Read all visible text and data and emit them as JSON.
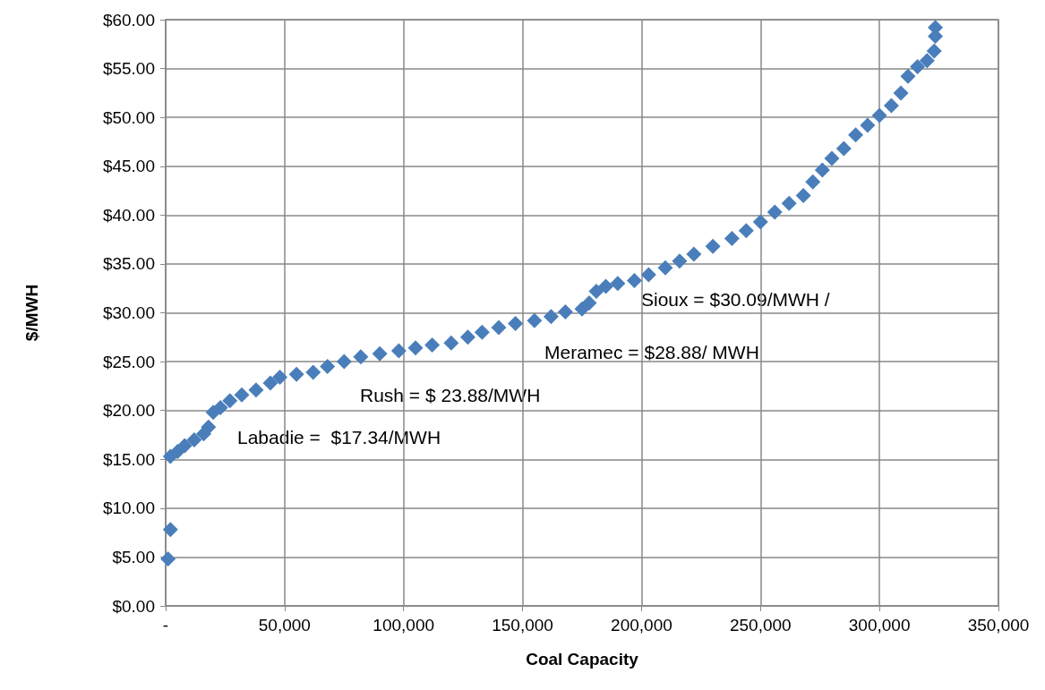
{
  "chart_data": {
    "type": "scatter",
    "xlabel": "Coal Capacity",
    "ylabel": "$/MWH",
    "annotations": [
      "Labadie =  $17.34/MWH",
      "Rush = $ 23.88/MWH",
      "Meramec = $28.88/ MWH",
      "Sioux = $30.09/MWH /"
    ],
    "xlim": [
      0,
      350000
    ],
    "xticks": [
      {
        "value": 0,
        "label": "-"
      },
      {
        "value": 50000,
        "label": "50,000"
      },
      {
        "value": 100000,
        "label": "100,000"
      },
      {
        "value": 150000,
        "label": "150,000"
      },
      {
        "value": 200000,
        "label": "200,000"
      },
      {
        "value": 250000,
        "label": "250,000"
      },
      {
        "value": 300000,
        "label": "300,000"
      },
      {
        "value": 350000,
        "label": "350,000"
      }
    ],
    "ylim": [
      0,
      60
    ],
    "yticks": [
      {
        "value": 0,
        "label": "$0.00"
      },
      {
        "value": 5,
        "label": "$5.00"
      },
      {
        "value": 10,
        "label": "$10.00"
      },
      {
        "value": 15,
        "label": "$15.00"
      },
      {
        "value": 20,
        "label": "$20.00"
      },
      {
        "value": 25,
        "label": "$25.00"
      },
      {
        "value": 30,
        "label": "$30.00"
      },
      {
        "value": 35,
        "label": "$35.00"
      },
      {
        "value": 40,
        "label": "$40.00"
      },
      {
        "value": 45,
        "label": "$45.00"
      },
      {
        "value": 50,
        "label": "$50.00"
      },
      {
        "value": 55,
        "label": "$55.00"
      },
      {
        "value": 60,
        "label": "$60.00"
      }
    ],
    "grid": true,
    "marker": "diamond",
    "series": [
      {
        "color": "#4a7ebb",
        "x": [
          1000,
          2000,
          2000,
          5000,
          8000,
          12000,
          16000,
          18000,
          20000,
          23000,
          27000,
          32000,
          38000,
          44000,
          48000,
          55000,
          62000,
          68000,
          75000,
          82000,
          90000,
          98000,
          105000,
          112000,
          120000,
          127000,
          133000,
          140000,
          147000,
          155000,
          162000,
          168000,
          175000,
          178000,
          181000,
          185000,
          190000,
          197000,
          203000,
          210000,
          216000,
          222000,
          230000,
          238000,
          244000,
          250000,
          256000,
          262000,
          268000,
          272000,
          276000,
          280000,
          285000,
          290000,
          295000,
          300000,
          305000,
          309000,
          312000,
          316000,
          320000,
          323000,
          323500,
          323500
        ],
        "values": [
          4.8,
          7.8,
          15.3,
          15.8,
          16.4,
          17.0,
          17.6,
          18.3,
          19.8,
          20.3,
          21.0,
          21.6,
          22.1,
          22.8,
          23.4,
          23.7,
          23.9,
          24.5,
          25.0,
          25.5,
          25.8,
          26.1,
          26.4,
          26.7,
          26.9,
          27.5,
          28.0,
          28.5,
          28.9,
          29.2,
          29.6,
          30.1,
          30.4,
          31.0,
          32.2,
          32.7,
          33.0,
          33.3,
          33.9,
          34.6,
          35.3,
          36.0,
          36.8,
          37.6,
          38.4,
          39.3,
          40.3,
          41.2,
          42.0,
          43.4,
          44.6,
          45.8,
          46.8,
          48.2,
          49.2,
          50.2,
          51.2,
          52.5,
          54.2,
          55.2,
          55.8,
          56.8,
          58.3,
          59.2
        ]
      }
    ]
  }
}
